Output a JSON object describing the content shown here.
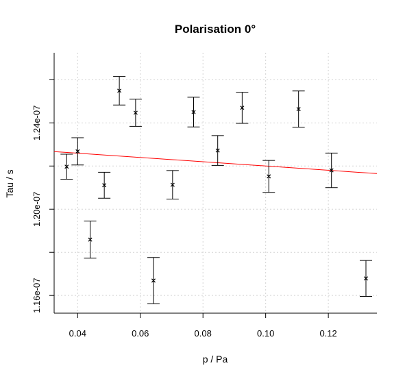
{
  "chart_data": {
    "type": "scatter",
    "title": "Polarisation 0°",
    "xlabel": "p / Pa",
    "ylabel": "Tau / s",
    "xlim": [
      0.0325,
      0.1355
    ],
    "ylim": [
      1.1518e-07,
      1.2725e-07
    ],
    "xticks": [
      0.04,
      0.06,
      0.08,
      0.1,
      0.12
    ],
    "xtick_labels": [
      "0.04",
      "0.06",
      "0.08",
      "0.10",
      "0.12"
    ],
    "yticks": [
      1.16e-07,
      1.18e-07,
      1.2e-07,
      1.22e-07,
      1.24e-07,
      1.26e-07
    ],
    "ytick_labels": [
      "1.16e-07",
      "",
      "1.20e-07",
      "",
      "1.24e-07",
      ""
    ],
    "grid": true,
    "points": [
      {
        "x": 0.0365,
        "y": 1.2197e-07,
        "err": 5.8e-10
      },
      {
        "x": 0.04,
        "y": 1.2268e-07,
        "err": 6.3e-10
      },
      {
        "x": 0.044,
        "y": 1.1859e-07,
        "err": 8.6e-10
      },
      {
        "x": 0.0485,
        "y": 1.2111e-07,
        "err": 6e-10
      },
      {
        "x": 0.0533,
        "y": 1.2549e-07,
        "err": 6.6e-10
      },
      {
        "x": 0.0585,
        "y": 1.2447e-07,
        "err": 6.3e-10
      },
      {
        "x": 0.0642,
        "y": 1.1669e-07,
        "err": 1.07e-09
      },
      {
        "x": 0.0703,
        "y": 1.2113e-07,
        "err": 6.6e-10
      },
      {
        "x": 0.077,
        "y": 1.245e-07,
        "err": 6.9e-10
      },
      {
        "x": 0.0847,
        "y": 1.2272e-07,
        "err": 6.9e-10
      },
      {
        "x": 0.0925,
        "y": 1.247e-07,
        "err": 7.2e-10
      },
      {
        "x": 0.101,
        "y": 1.2152e-07,
        "err": 7.4e-10
      },
      {
        "x": 0.1105,
        "y": 1.2464e-07,
        "err": 8.4e-10
      },
      {
        "x": 0.121,
        "y": 1.218e-07,
        "err": 8e-10
      },
      {
        "x": 0.132,
        "y": 1.1679e-07,
        "err": 8.3e-10
      }
    ],
    "fit_line": {
      "color": "#ff0000",
      "x": [
        0.0325,
        0.1355
      ],
      "y": [
        1.2267e-07,
        1.2165e-07
      ]
    }
  }
}
